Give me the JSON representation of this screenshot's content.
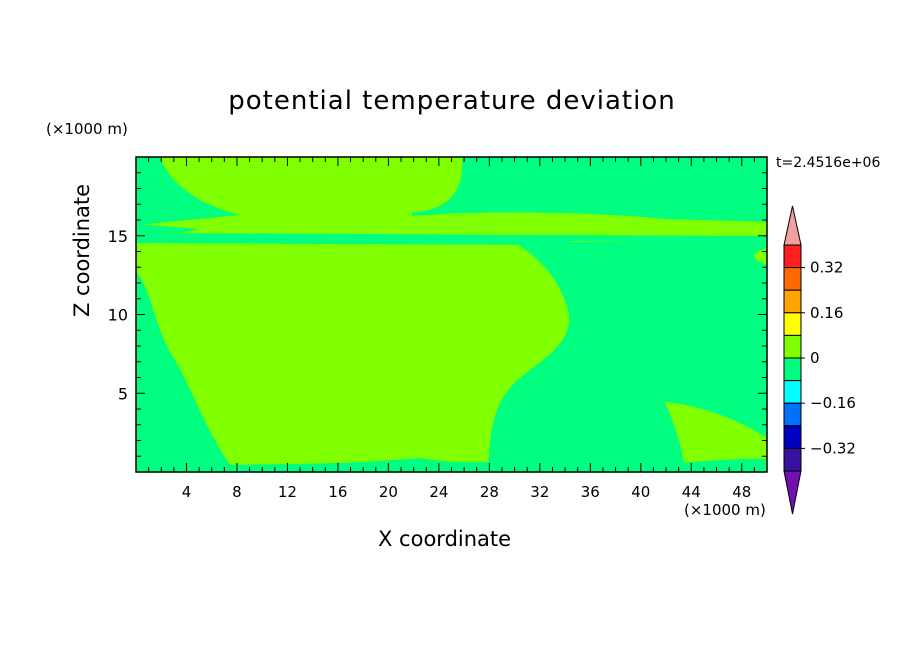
{
  "chart_data": {
    "type": "heatmap",
    "title": "potential temperature deviation",
    "xlabel": "X coordinate",
    "ylabel": "Z coordinate",
    "x_unit": "(×1000 m)",
    "y_unit": "(×1000 m)",
    "time_label": "t=2.4516e+06",
    "xlim": [
      0,
      50
    ],
    "ylim": [
      0,
      20
    ],
    "x_ticks": [
      4,
      8,
      12,
      16,
      20,
      24,
      28,
      32,
      36,
      40,
      44,
      48
    ],
    "y_ticks": [
      5,
      10,
      15
    ],
    "colorbar": {
      "levels": [
        {
          "range": "> 0.40",
          "color": "#f4a0a0",
          "shape": "arrow-top"
        },
        {
          "range": "0.32 to 0.40",
          "color": "#ff2020"
        },
        {
          "range": "0.24 to 0.32",
          "color": "#ff6a00"
        },
        {
          "range": "0.16 to 0.24",
          "color": "#ffa500"
        },
        {
          "range": "0.08 to 0.16",
          "color": "#ffff00"
        },
        {
          "range": "0 to 0.08",
          "color": "#80ff00"
        },
        {
          "range": "-0.08 to 0",
          "color": "#00ff80"
        },
        {
          "range": "-0.16 to -0.08",
          "color": "#00ffff"
        },
        {
          "range": "-0.24 to -0.16",
          "color": "#0070ff"
        },
        {
          "range": "-0.32 to -0.24",
          "color": "#0000c0"
        },
        {
          "range": "-0.40 to -0.32",
          "color": "#3a10a0"
        },
        {
          "range": "< -0.40",
          "color": "#7010b0",
          "shape": "arrow-bottom"
        }
      ],
      "tick_labels": [
        "0.32",
        "0.16",
        "0",
        "-0.16",
        "-0.32"
      ],
      "tick_values": [
        0.32,
        0.16,
        0,
        -0.16,
        -0.32
      ]
    },
    "regions": [
      {
        "level": "0 to 0.08",
        "color": "#80ff00",
        "description": "background: most of the domain below z=14 and x<30"
      },
      {
        "level": "-0.08 to 0",
        "color": "#00ff80",
        "description": "negative regions: left edge, right half, upper right, near bottom"
      }
    ]
  }
}
